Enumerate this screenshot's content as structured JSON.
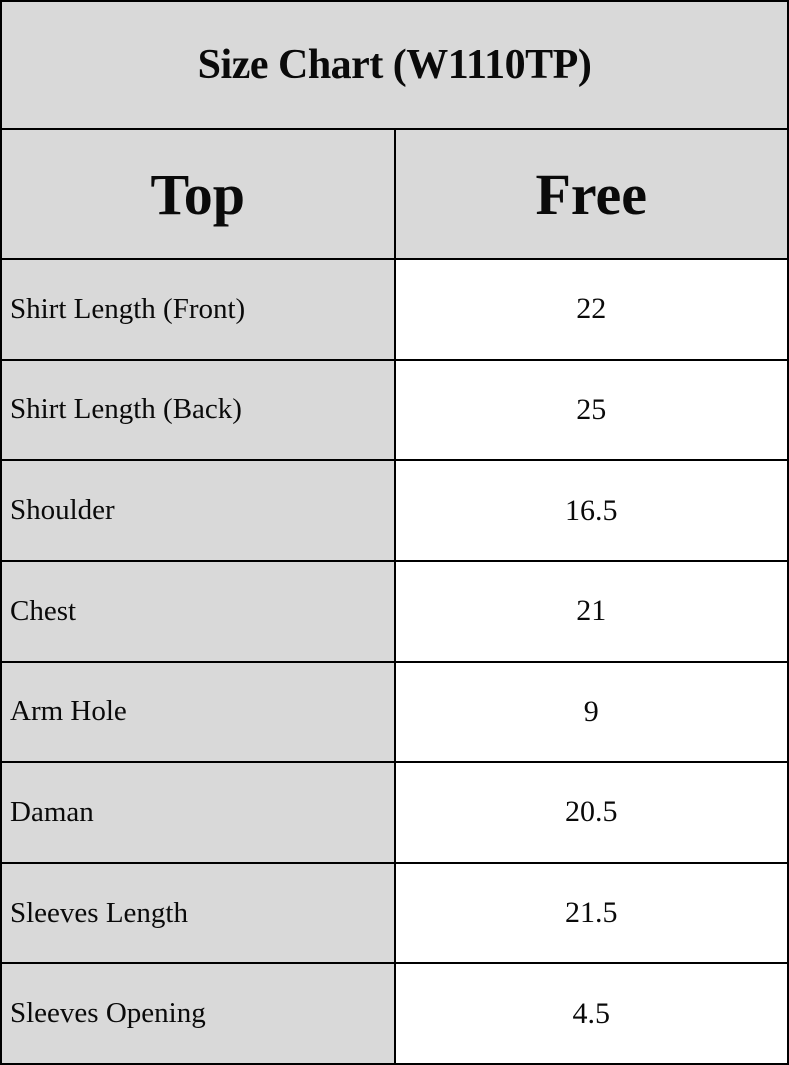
{
  "colors": {
    "cell_gray": "#d9d9d9",
    "cell_white": "#ffffff",
    "grid_line": "#000000",
    "text": "#0a0a0a"
  },
  "chart_data": {
    "type": "table",
    "title": "Size Chart (W1110TP)",
    "columns": [
      "Top",
      "Free"
    ],
    "rows": [
      {
        "label": "Shirt Length (Front)",
        "value": "22"
      },
      {
        "label": "Shirt Length (Back)",
        "value": "25"
      },
      {
        "label": "Shoulder",
        "value": "16.5"
      },
      {
        "label": "Chest",
        "value": "21"
      },
      {
        "label": "Arm Hole",
        "value": "9"
      },
      {
        "label": "Daman",
        "value": "20.5"
      },
      {
        "label": "Sleeves Length",
        "value": "21.5"
      },
      {
        "label": "Sleeves Opening",
        "value": "4.5"
      }
    ]
  }
}
